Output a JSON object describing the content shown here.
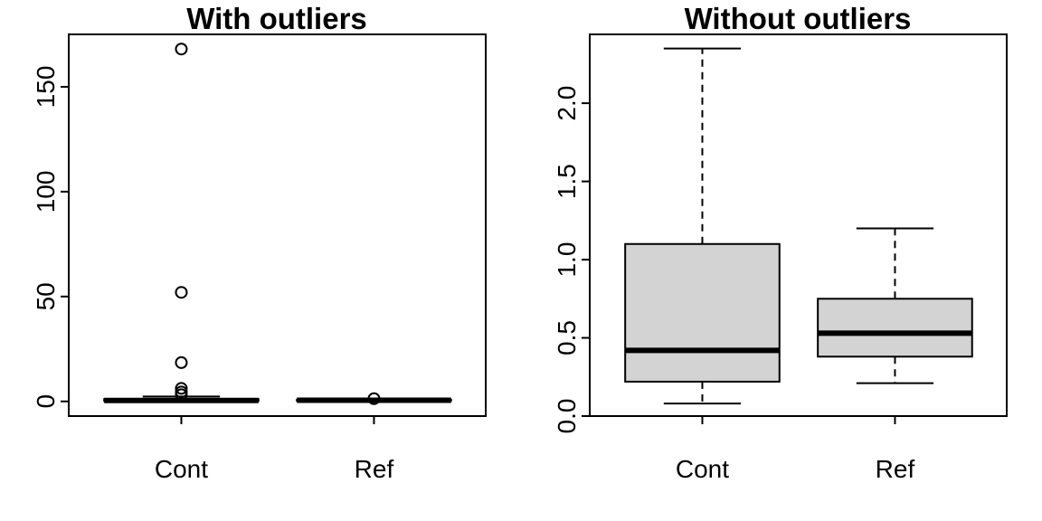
{
  "chart_data": [
    {
      "type": "boxplot",
      "title": "With outliers",
      "categories": [
        "Cont",
        "Ref"
      ],
      "yticks": [
        0,
        50,
        100,
        150
      ],
      "ylim": [
        -7,
        175
      ],
      "boxes": [
        {
          "category": "Cont",
          "whisker_low": 0.08,
          "q1": 0.22,
          "median": 0.42,
          "q3": 1.1,
          "whisker_high": 2.35,
          "outliers": [
            3.2,
            4.5,
            6.2,
            18.5,
            52,
            168
          ]
        },
        {
          "category": "Ref",
          "whisker_low": 0.21,
          "q1": 0.38,
          "median": 0.53,
          "q3": 0.75,
          "whisker_high": 1.2,
          "outliers": [
            1.3
          ]
        }
      ],
      "box_fill": "#d3d3d3"
    },
    {
      "type": "boxplot",
      "title": "Without outliers",
      "categories": [
        "Cont",
        "Ref"
      ],
      "yticks": [
        0.0,
        0.5,
        1.0,
        1.5,
        2.0
      ],
      "ytick_labels": [
        "0.0",
        "0.5",
        "1.0",
        "1.5",
        "2.0"
      ],
      "ylim": [
        0.0,
        2.44
      ],
      "boxes": [
        {
          "category": "Cont",
          "whisker_low": 0.08,
          "q1": 0.22,
          "median": 0.42,
          "q3": 1.1,
          "whisker_high": 2.35,
          "outliers": []
        },
        {
          "category": "Ref",
          "whisker_low": 0.21,
          "q1": 0.38,
          "median": 0.53,
          "q3": 0.75,
          "whisker_high": 1.2,
          "outliers": []
        }
      ],
      "box_fill": "#d3d3d3"
    }
  ]
}
